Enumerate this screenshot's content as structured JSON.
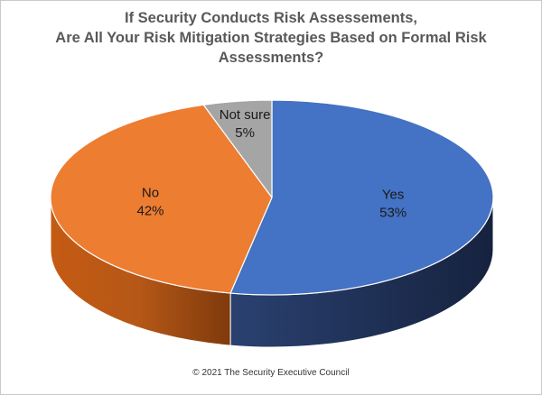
{
  "title_lines": [
    "If Security Conducts Risk Assessements,",
    "Are All Your Risk Mitigation Strategies Based on Formal Risk",
    "Assessments?"
  ],
  "footer": "© 2021 The Security Executive Council",
  "chart_data": {
    "type": "pie",
    "style": "3d",
    "title": "If Security Conducts Risk Assessements, Are All Your Risk Mitigation Strategies Based on Formal Risk Assessments?",
    "slices": [
      {
        "label": "Yes",
        "value": 53,
        "value_label": "53%",
        "color": "#4472C4"
      },
      {
        "label": "No",
        "value": 42,
        "value_label": "42%",
        "color": "#ED7D31"
      },
      {
        "label": "Not sure",
        "value": 5,
        "value_label": "5%",
        "color": "#A5A5A5"
      }
    ],
    "legend": "none"
  }
}
